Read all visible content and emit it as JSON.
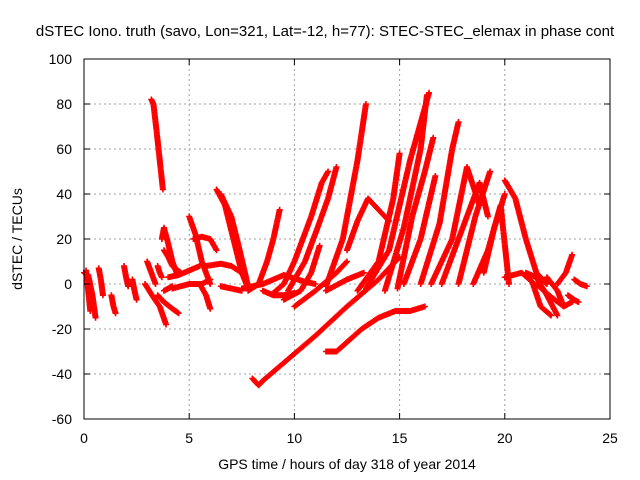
{
  "chart_data": {
    "type": "scatter",
    "title": "dSTEC Iono. truth (savo, Lon=321, Lat=-12, h=77): STEC-STEC_elemax in phase cont",
    "xlabel": "GPS time / hours of day 318 of year 2014",
    "ylabel": "dSTEC  / TECUs",
    "xlim": [
      0,
      25
    ],
    "ylim": [
      -60,
      100
    ],
    "xticks": [
      0,
      5,
      10,
      15,
      20,
      25
    ],
    "yticks": [
      -60,
      -40,
      -20,
      0,
      20,
      40,
      60,
      80,
      100
    ],
    "xtick_labels": [
      "0",
      "5",
      "10",
      "15",
      "20",
      "25"
    ],
    "ytick_labels": [
      "-60",
      "-40",
      "-20",
      "0",
      "20",
      "40",
      "60",
      "80",
      "100"
    ],
    "grid": true,
    "legend": "none",
    "marker": "plus",
    "color": "#ff0000",
    "series": [
      {
        "x": [
          0.0,
          0.2,
          0.4,
          0.55
        ],
        "y": [
          5,
          4,
          -5,
          -15
        ]
      },
      {
        "x": [
          0.1,
          0.2,
          0.3
        ],
        "y": [
          6,
          -3,
          -12
        ]
      },
      {
        "x": [
          0.7,
          0.8,
          0.9
        ],
        "y": [
          7,
          2,
          -5
        ]
      },
      {
        "x": [
          1.3,
          1.4,
          1.5
        ],
        "y": [
          -5,
          -10,
          -13
        ]
      },
      {
        "x": [
          1.9,
          2.0,
          2.1
        ],
        "y": [
          8,
          3,
          -1
        ]
      },
      {
        "x": [
          2.3,
          2.4,
          2.5
        ],
        "y": [
          2,
          -3,
          -7
        ]
      },
      {
        "x": [
          2.9,
          3.1,
          3.3,
          3.6,
          3.9
        ],
        "y": [
          0,
          -3,
          -6,
          -10,
          -18
        ]
      },
      {
        "x": [
          3.0,
          3.2,
          3.4
        ],
        "y": [
          10,
          5,
          0
        ]
      },
      {
        "x": [
          3.5,
          3.6,
          3.7
        ],
        "y": [
          8,
          5,
          3
        ]
      },
      {
        "x": [
          3.2,
          3.3,
          3.45,
          3.6,
          3.75
        ],
        "y": [
          82,
          80,
          68,
          55,
          42
        ]
      },
      {
        "x": [
          3.5,
          3.8,
          4.2,
          4.5
        ],
        "y": [
          -5,
          -8,
          -11,
          -13
        ]
      },
      {
        "x": [
          3.7,
          3.8,
          4.0,
          4.2,
          4.4
        ],
        "y": [
          20,
          25,
          18,
          10,
          5
        ]
      },
      {
        "x": [
          3.8,
          4.0,
          4.2,
          4.6
        ],
        "y": [
          15,
          12,
          8,
          5
        ]
      },
      {
        "x": [
          3.8,
          4.0,
          4.2
        ],
        "y": [
          -3,
          -2,
          -1
        ]
      },
      {
        "x": [
          4.0,
          4.5,
          5.0,
          5.5
        ],
        "y": [
          3,
          4,
          6,
          8
        ]
      },
      {
        "x": [
          4.2,
          5.0,
          5.6,
          6.0
        ],
        "y": [
          -2,
          0,
          0,
          2
        ]
      },
      {
        "x": [
          5.0,
          5.3,
          5.6,
          6.0
        ],
        "y": [
          30,
          22,
          10,
          0
        ]
      },
      {
        "x": [
          5.2,
          5.6,
          6.0,
          6.3
        ],
        "y": [
          20,
          21,
          20,
          15
        ]
      },
      {
        "x": [
          5.5,
          5.8,
          6.0
        ],
        "y": [
          0,
          -5,
          -11
        ]
      },
      {
        "x": [
          5.8,
          6.5,
          7.0,
          7.5
        ],
        "y": [
          8,
          9,
          8,
          5
        ]
      },
      {
        "x": [
          6.3,
          6.7,
          7.1,
          7.5,
          7.8
        ],
        "y": [
          42,
          35,
          20,
          5,
          -2
        ]
      },
      {
        "x": [
          6.5,
          7.0,
          7.4,
          7.8
        ],
        "y": [
          40,
          30,
          15,
          -1
        ]
      },
      {
        "x": [
          6.5,
          7.0,
          7.5
        ],
        "y": [
          -1,
          -2,
          -3
        ]
      },
      {
        "x": [
          7.5,
          8.5,
          9.0,
          9.5,
          10.5,
          11.0
        ],
        "y": [
          -2,
          0,
          2,
          4,
          1,
          0
        ]
      },
      {
        "x": [
          7.8,
          8.3,
          8.7,
          9.0,
          9.3
        ],
        "y": [
          -3,
          0,
          10,
          20,
          33
        ]
      },
      {
        "x": [
          8.5,
          9.0,
          9.5,
          10.0
        ],
        "y": [
          -3,
          -5,
          -5,
          -4
        ]
      },
      {
        "x": [
          8.0,
          8.3,
          8.5,
          9.5,
          11.0,
          12.5,
          14.0,
          15.0
        ],
        "y": [
          -42,
          -45,
          -43,
          -35,
          -23,
          -10,
          2,
          12
        ]
      },
      {
        "x": [
          9.0,
          9.5,
          10.0,
          10.8,
          11.3,
          11.6
        ],
        "y": [
          -4,
          0,
          10,
          30,
          45,
          50
        ]
      },
      {
        "x": [
          9.5,
          10.3,
          10.8,
          11.2
        ],
        "y": [
          -7,
          -3,
          5,
          17
        ]
      },
      {
        "x": [
          9.7,
          10.5,
          11.1,
          11.6,
          12.0
        ],
        "y": [
          -3,
          10,
          25,
          38,
          52
        ]
      },
      {
        "x": [
          10.0,
          11.0,
          12.0,
          12.5
        ],
        "y": [
          -10,
          -3,
          5,
          10
        ]
      },
      {
        "x": [
          11.5,
          12.0,
          12.6,
          13.2,
          14.0,
          14.8,
          15.5,
          16.2
        ],
        "y": [
          -30,
          -30,
          -25,
          -20,
          -15,
          -12,
          -12,
          -10
        ]
      },
      {
        "x": [
          11.5,
          12.3,
          13.0,
          13.4
        ],
        "y": [
          -1,
          20,
          55,
          80
        ]
      },
      {
        "x": [
          11.5,
          12.5,
          13.3
        ],
        "y": [
          -3,
          2,
          5
        ]
      },
      {
        "x": [
          12.5,
          13.0,
          13.5,
          14.5
        ],
        "y": [
          15,
          28,
          38,
          28
        ]
      },
      {
        "x": [
          13.0,
          14.0,
          14.7,
          15.0
        ],
        "y": [
          -3,
          10,
          38,
          58
        ]
      },
      {
        "x": [
          13.4,
          14.5,
          15.5,
          16.4
        ],
        "y": [
          -2,
          15,
          55,
          85
        ]
      },
      {
        "x": [
          14.3,
          15.2,
          16.0,
          16.3
        ],
        "y": [
          -3,
          25,
          60,
          84
        ]
      },
      {
        "x": [
          14.9,
          15.6,
          16.2,
          16.6
        ],
        "y": [
          -2,
          30,
          50,
          65
        ]
      },
      {
        "x": [
          15.2,
          16.0,
          16.7
        ],
        "y": [
          0,
          20,
          48
        ]
      },
      {
        "x": [
          16.0,
          16.9,
          17.5,
          17.8
        ],
        "y": [
          0,
          27,
          60,
          72
        ]
      },
      {
        "x": [
          16.5,
          17.5,
          18.2,
          18.8
        ],
        "y": [
          0,
          20,
          52,
          35
        ]
      },
      {
        "x": [
          17.0,
          18.0,
          18.8,
          19.2
        ],
        "y": [
          0,
          25,
          45,
          30
        ]
      },
      {
        "x": [
          17.8,
          18.6,
          19.3
        ],
        "y": [
          0,
          30,
          50
        ]
      },
      {
        "x": [
          18.5,
          19.2,
          19.8,
          20.2
        ],
        "y": [
          0,
          15,
          35,
          0
        ]
      },
      {
        "x": [
          19.0,
          19.5,
          20.0
        ],
        "y": [
          5,
          25,
          40
        ]
      },
      {
        "x": [
          20.0,
          20.5,
          21.0,
          21.5,
          22.0
        ],
        "y": [
          46,
          38,
          20,
          5,
          0
        ]
      },
      {
        "x": [
          20.0,
          20.8,
          21.3,
          21.7,
          22.2
        ],
        "y": [
          3,
          5,
          1,
          -10,
          -14
        ]
      },
      {
        "x": [
          21.0,
          21.5,
          22.0,
          22.5
        ],
        "y": [
          5,
          3,
          -5,
          -14
        ]
      },
      {
        "x": [
          21.5,
          22.1,
          22.8,
          23.2
        ],
        "y": [
          0,
          -5,
          -10,
          -8
        ]
      },
      {
        "x": [
          22.0,
          22.5,
          22.8
        ],
        "y": [
          3,
          -3,
          -10
        ]
      },
      {
        "x": [
          22.5,
          22.9,
          23.2
        ],
        "y": [
          0,
          5,
          13
        ]
      },
      {
        "x": [
          23.0,
          23.3,
          23.5
        ],
        "y": [
          -5,
          -7,
          -8
        ]
      },
      {
        "x": [
          23.3,
          23.6,
          23.9
        ],
        "y": [
          2,
          0,
          -1
        ]
      }
    ]
  }
}
